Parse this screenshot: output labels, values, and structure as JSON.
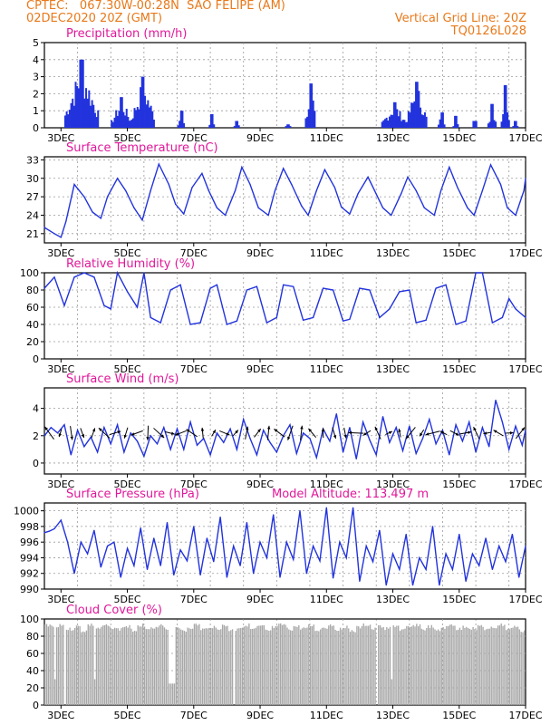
{
  "header": {
    "left_line1": "CPTEC:   067:30W-00:28N  SAO FELIPE (AM)",
    "left_line2": "02DEC2020 20Z (GMT)",
    "right_line1": "Vertical Grid Line: 20Z",
    "right_line2": "TQ0126L028"
  },
  "colors": {
    "header_text": "#e8791a",
    "panel_title": "#e0189a",
    "series_line": "#2233dd",
    "cloud_fill": "#a8a8a8",
    "grid": "#9a9a9a"
  },
  "x_axis": {
    "tick_labels": [
      "3DEC",
      "5DEC",
      "7DEC",
      "9DEC",
      "11DEC",
      "13DEC",
      "15DEC",
      "17DEC"
    ],
    "range_days": [
      0,
      14.5
    ],
    "vertical_grid": "dashed, daily at 20Z"
  },
  "chart_data": [
    {
      "id": "precip",
      "type": "bar",
      "title": "Precipitation (mm/h)",
      "ylim": [
        0,
        5
      ],
      "yticks": [
        0,
        1,
        2,
        3,
        4,
        5
      ],
      "bursts": [
        {
          "start": 0.6,
          "end": 1.6,
          "peak": 4.0
        },
        {
          "start": 2.0,
          "end": 2.6,
          "peak": 1.8
        },
        {
          "start": 2.6,
          "end": 3.3,
          "peak": 3.0
        },
        {
          "start": 4.0,
          "end": 4.2,
          "peak": 1.0
        },
        {
          "start": 4.95,
          "end": 5.1,
          "peak": 0.8
        },
        {
          "start": 5.7,
          "end": 5.85,
          "peak": 0.4
        },
        {
          "start": 7.25,
          "end": 7.4,
          "peak": 0.2
        },
        {
          "start": 7.85,
          "end": 8.15,
          "peak": 2.6
        },
        {
          "start": 10.15,
          "end": 10.9,
          "peak": 1.5
        },
        {
          "start": 10.9,
          "end": 11.5,
          "peak": 2.7
        },
        {
          "start": 11.85,
          "end": 12.05,
          "peak": 0.9
        },
        {
          "start": 12.3,
          "end": 12.45,
          "peak": 0.7
        },
        {
          "start": 12.9,
          "end": 13.0,
          "peak": 0.4
        },
        {
          "start": 13.35,
          "end": 13.6,
          "peak": 1.4
        },
        {
          "start": 13.75,
          "end": 14.0,
          "peak": 2.5
        },
        {
          "start": 14.1,
          "end": 14.25,
          "peak": 0.4
        }
      ]
    },
    {
      "id": "temp",
      "type": "line",
      "title": "Surface Temperature (nC)",
      "ylim": [
        19.5,
        33.5
      ],
      "yticks": [
        21,
        24,
        27,
        30,
        33
      ],
      "x": [
        0,
        0.3,
        0.5,
        0.65,
        0.9,
        1.2,
        1.45,
        1.7,
        1.9,
        2.2,
        2.45,
        2.7,
        2.95,
        3.2,
        3.45,
        3.75,
        3.95,
        4.2,
        4.45,
        4.75,
        4.95,
        5.2,
        5.45,
        5.75,
        5.95,
        6.2,
        6.45,
        6.75,
        6.95,
        7.2,
        7.45,
        7.75,
        7.95,
        8.2,
        8.45,
        8.75,
        8.95,
        9.2,
        9.45,
        9.75,
        9.95,
        10.2,
        10.45,
        10.75,
        10.95,
        11.2,
        11.45,
        11.75,
        11.95,
        12.2,
        12.45,
        12.75,
        12.95,
        13.2,
        13.45,
        13.75,
        13.95,
        14.2,
        14.45,
        14.5
      ],
      "values": [
        22,
        21,
        20.4,
        23,
        29,
        27,
        24.5,
        23.5,
        27,
        30,
        28,
        25.2,
        23.2,
        28,
        32.3,
        29,
        25.8,
        24.2,
        28.5,
        30.8,
        28,
        25.2,
        24,
        28,
        31.8,
        29,
        25.2,
        24,
        28,
        31.6,
        29,
        25.5,
        24,
        28,
        31.4,
        28.5,
        25.3,
        24.2,
        27.5,
        30.2,
        28,
        25.2,
        24,
        27.5,
        30.2,
        28,
        25.2,
        24,
        28,
        31.8,
        28.5,
        25.2,
        24,
        28,
        32.2,
        29,
        25.2,
        24,
        28,
        30
      ]
    },
    {
      "id": "rh",
      "type": "line",
      "title": "Relative Humidity (%)",
      "ylim": [
        0,
        100
      ],
      "yticks": [
        0,
        20,
        40,
        60,
        80,
        100
      ],
      "x": [
        0,
        0.3,
        0.6,
        0.9,
        1.2,
        1.5,
        1.8,
        2.0,
        2.2,
        2.5,
        2.8,
        3.0,
        3.2,
        3.5,
        3.8,
        4.1,
        4.4,
        4.7,
        5.0,
        5.2,
        5.5,
        5.8,
        6.1,
        6.4,
        6.7,
        7.0,
        7.2,
        7.5,
        7.8,
        8.1,
        8.4,
        8.7,
        9.0,
        9.2,
        9.5,
        9.8,
        10.1,
        10.4,
        10.7,
        11.0,
        11.2,
        11.5,
        11.8,
        12.1,
        12.4,
        12.7,
        13.0,
        13.2,
        13.5,
        13.8,
        14.0,
        14.2,
        14.5
      ],
      "values": [
        82,
        95,
        62,
        95,
        100,
        95,
        62,
        58,
        100,
        78,
        60,
        100,
        48,
        42,
        80,
        86,
        40,
        42,
        82,
        86,
        40,
        44,
        80,
        84,
        42,
        48,
        86,
        84,
        45,
        48,
        82,
        80,
        44,
        46,
        82,
        80,
        48,
        58,
        78,
        80,
        42,
        45,
        82,
        86,
        40,
        44,
        100,
        100,
        42,
        48,
        70,
        58,
        48
      ]
    },
    {
      "id": "wind",
      "type": "line",
      "title": "Surface Wind (m/s)",
      "ylim": [
        -0.8,
        5.5
      ],
      "yticks": [
        0,
        2,
        4
      ],
      "x": [
        0,
        0.2,
        0.4,
        0.6,
        0.8,
        1.0,
        1.2,
        1.4,
        1.6,
        1.8,
        2.0,
        2.2,
        2.4,
        2.6,
        2.8,
        3.0,
        3.2,
        3.4,
        3.6,
        3.8,
        4.0,
        4.2,
        4.4,
        4.6,
        4.8,
        5.0,
        5.2,
        5.4,
        5.6,
        5.8,
        6.0,
        6.2,
        6.4,
        6.6,
        6.8,
        7.0,
        7.2,
        7.4,
        7.6,
        7.8,
        8.0,
        8.2,
        8.4,
        8.6,
        8.8,
        9.0,
        9.2,
        9.4,
        9.6,
        9.8,
        10.0,
        10.2,
        10.4,
        10.6,
        10.8,
        11.0,
        11.2,
        11.4,
        11.6,
        11.8,
        12.0,
        12.2,
        12.4,
        12.6,
        12.8,
        13.0,
        13.2,
        13.4,
        13.6,
        13.8,
        14.0,
        14.2,
        14.4,
        14.5
      ],
      "values": [
        2.0,
        2.6,
        2.2,
        2.8,
        0.6,
        2.4,
        1.2,
        1.9,
        0.8,
        2.6,
        1.4,
        2.8,
        0.8,
        2.2,
        1.6,
        0.5,
        2.0,
        1.4,
        2.6,
        1.0,
        2.5,
        1.0,
        3.0,
        1.3,
        1.8,
        0.6,
        2.2,
        1.5,
        2.5,
        1.0,
        3.2,
        1.8,
        0.6,
        2.4,
        1.5,
        0.8,
        2.0,
        2.8,
        0.7,
        2.2,
        1.8,
        0.4,
        2.5,
        1.6,
        3.6,
        0.8,
        2.6,
        0.3,
        3.0,
        1.7,
        0.6,
        3.4,
        1.5,
        2.6,
        0.9,
        2.7,
        0.7,
        1.8,
        3.2,
        1.4,
        2.4,
        0.6,
        2.8,
        1.6,
        3.0,
        0.8,
        2.6,
        1.2,
        4.6,
        3.0,
        1.0,
        2.7,
        1.3,
        2.4
      ]
    },
    {
      "id": "pres",
      "type": "line",
      "title": "Surface Pressure (hPa)",
      "annotation": "Model Altitude: 113.497 m",
      "ylim": [
        990,
        1001
      ],
      "yticks": [
        990,
        992,
        994,
        996,
        998,
        1000
      ],
      "x": [
        0,
        0.15,
        0.3,
        0.5,
        0.7,
        0.9,
        1.1,
        1.3,
        1.5,
        1.7,
        1.9,
        2.1,
        2.3,
        2.5,
        2.7,
        2.9,
        3.1,
        3.3,
        3.5,
        3.7,
        3.9,
        4.1,
        4.3,
        4.5,
        4.7,
        4.9,
        5.1,
        5.3,
        5.5,
        5.7,
        5.9,
        6.1,
        6.3,
        6.5,
        6.7,
        6.9,
        7.1,
        7.3,
        7.5,
        7.7,
        7.9,
        8.1,
        8.3,
        8.5,
        8.7,
        8.9,
        9.1,
        9.3,
        9.5,
        9.7,
        9.9,
        10.1,
        10.3,
        10.5,
        10.7,
        10.9,
        11.1,
        11.3,
        11.5,
        11.7,
        11.9,
        12.1,
        12.3,
        12.5,
        12.7,
        12.9,
        13.1,
        13.3,
        13.5,
        13.7,
        13.9,
        14.1,
        14.3,
        14.5
      ],
      "values": [
        997.2,
        997.4,
        997.7,
        998.8,
        996.0,
        992.0,
        996.0,
        994.5,
        997.5,
        992.8,
        995.5,
        996.0,
        991.5,
        995.2,
        993.0,
        997.8,
        992.5,
        996.5,
        993.0,
        998.5,
        991.8,
        995.0,
        993.6,
        998.0,
        991.8,
        996.5,
        993.5,
        999.2,
        991.5,
        995.5,
        993.0,
        998.5,
        992.0,
        996.0,
        994.0,
        999.5,
        991.5,
        996.0,
        993.8,
        1000.0,
        992.0,
        995.5,
        993.6,
        1000.4,
        991.4,
        996.0,
        994.0,
        1000.4,
        991.0,
        995.5,
        993.5,
        997.5,
        990.5,
        994.5,
        992.5,
        997.0,
        990.5,
        994.0,
        992.5,
        998.0,
        990.5,
        994.5,
        992.5,
        997.0,
        991.0,
        994.5,
        993.0,
        996.5,
        992.5,
        995.5,
        993.5,
        997.0,
        991.5,
        995.5
      ]
    },
    {
      "id": "cloud",
      "type": "area",
      "title": "Cloud Cover (%)",
      "ylim": [
        0,
        100
      ],
      "yticks": [
        0,
        20,
        40,
        60,
        80,
        100
      ],
      "gaps": [
        {
          "start": 0.3,
          "end": 0.34,
          "min": 30
        },
        {
          "start": 0.6,
          "end": 0.64,
          "min": 0
        },
        {
          "start": 1.5,
          "end": 1.53,
          "min": 30
        },
        {
          "start": 3.7,
          "end": 3.74,
          "min": 0
        },
        {
          "start": 3.74,
          "end": 3.9,
          "min": 25
        },
        {
          "start": 5.65,
          "end": 5.7,
          "min": 0
        },
        {
          "start": 10.0,
          "end": 10.05,
          "min": 0
        },
        {
          "start": 10.45,
          "end": 10.5,
          "min": 30
        }
      ],
      "values": [
        95,
        92,
        96,
        90,
        93,
        88,
        95,
        91,
        94,
        92,
        90,
        93,
        89,
        95,
        92,
        91,
        94,
        90,
        93,
        88,
        92,
        95,
        90,
        93,
        91,
        94,
        89,
        92,
        95,
        90,
        93,
        88,
        92,
        95,
        90,
        93,
        91,
        94,
        89,
        92,
        95,
        90,
        93,
        88,
        92,
        95,
        90,
        93,
        91,
        94,
        89,
        92,
        95,
        90,
        93,
        88,
        92,
        95,
        90,
        93,
        91,
        94,
        89,
        92,
        95,
        90,
        93,
        88
      ]
    }
  ]
}
